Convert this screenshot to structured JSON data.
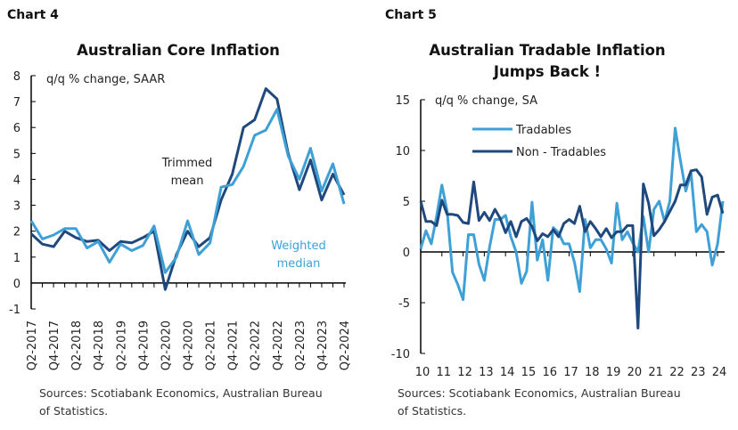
{
  "colors": {
    "dark": "#1f497d",
    "light": "#3fa0d6"
  },
  "chart_data": [
    {
      "type": "line",
      "label": "Chart 4",
      "title": "Australian Core Inflation",
      "ylabel": "q/q % change, SAAR",
      "ylim": [
        -1,
        8
      ],
      "yticks": [
        "-1",
        "0",
        "1",
        "2",
        "3",
        "4",
        "5",
        "6",
        "7",
        "8"
      ],
      "xtick_labels": [
        "Q2-2017",
        "Q4-2017",
        "Q2-2018",
        "Q4-2018",
        "Q2-2019",
        "Q4-2019",
        "Q2-2020",
        "Q4-2020",
        "Q2-2021",
        "Q4-2021",
        "Q2-2022",
        "Q4-2022",
        "Q2-2023",
        "Q4-2023",
        "Q2-2024"
      ],
      "series": [
        {
          "name": "Trimmed mean",
          "label_lines": [
            "Trimmed",
            "mean"
          ],
          "color": "#1f497d",
          "values": [
            1.9,
            1.5,
            1.4,
            2.0,
            1.75,
            1.6,
            1.65,
            1.25,
            1.6,
            1.55,
            1.75,
            2.0,
            -0.25,
            1.1,
            2.0,
            1.4,
            1.75,
            3.2,
            4.2,
            6.0,
            6.3,
            7.5,
            7.1,
            5.0,
            3.6,
            4.75,
            3.2,
            4.2,
            3.4
          ]
        },
        {
          "name": "Weighted median",
          "label_lines": [
            "Weighted",
            "median"
          ],
          "color": "#3fa0d6",
          "values": [
            2.4,
            1.7,
            1.85,
            2.1,
            2.1,
            1.35,
            1.6,
            0.8,
            1.5,
            1.25,
            1.45,
            2.2,
            0.4,
            1.0,
            2.4,
            1.1,
            1.55,
            3.7,
            3.8,
            4.5,
            5.7,
            5.9,
            6.7,
            4.9,
            4.0,
            5.2,
            3.55,
            4.6,
            3.05
          ]
        }
      ],
      "source": [
        "Sources: Scotiabank Economics, Australian Bureau",
        "of Statistics."
      ]
    },
    {
      "type": "line",
      "label": "Chart 5",
      "title": [
        "Australian Tradable Inflation",
        "Jumps Back !"
      ],
      "ylabel": "q/q % change, SA",
      "ylim": [
        -10,
        15
      ],
      "yticks": [
        "-10",
        "-5",
        "0",
        "5",
        "10",
        "15"
      ],
      "xtick_labels": [
        "10",
        "11",
        "12",
        "13",
        "14",
        "15",
        "16",
        "17",
        "18",
        "19",
        "20",
        "21",
        "22",
        "23",
        "24"
      ],
      "legend": "top-left",
      "series": [
        {
          "name": "Tradables",
          "color": "#3fa0d6",
          "values": [
            0.3,
            2.1,
            0.8,
            3.5,
            6.6,
            4.0,
            -2.0,
            -3.2,
            -4.7,
            1.7,
            1.7,
            -1.2,
            -2.8,
            0.5,
            3.2,
            3.2,
            3.6,
            1.5,
            0.0,
            -3.1,
            -1.9,
            4.9,
            -0.8,
            1.2,
            -2.8,
            2.4,
            1.9,
            0.8,
            0.8,
            -1.0,
            -3.9,
            3.2,
            0.4,
            1.2,
            1.2,
            0.3,
            -1.1,
            4.8,
            1.2,
            2.0,
            0.9,
            0.0,
            3.5,
            0.0,
            4.2,
            5.0,
            3.0,
            5.0,
            12.2,
            9.0,
            6.0,
            7.8,
            2.0,
            2.7,
            2.0,
            -1.3,
            0.8,
            5.0
          ]
        },
        {
          "name": "Non - Tradables",
          "color": "#1f497d",
          "values": [
            5.0,
            3.0,
            3.0,
            2.6,
            5.1,
            3.7,
            3.7,
            3.6,
            2.9,
            2.8,
            6.9,
            3.1,
            3.9,
            3.1,
            4.2,
            3.3,
            1.9,
            3.0,
            1.5,
            3.0,
            3.3,
            2.5,
            1.1,
            1.8,
            1.5,
            2.2,
            1.5,
            2.8,
            3.2,
            2.8,
            4.5,
            2.0,
            3.0,
            2.3,
            1.5,
            2.3,
            1.4,
            2.0,
            2.0,
            2.6,
            2.6,
            -7.5,
            6.7,
            4.8,
            1.6,
            2.2,
            3.0,
            4.0,
            5.0,
            6.6,
            6.6,
            8.0,
            8.1,
            7.4,
            3.7,
            5.4,
            5.6,
            3.8
          ]
        }
      ],
      "source": [
        "Sources: Scotiabank Economics, Australian Bureau",
        "of Statistics."
      ]
    }
  ]
}
